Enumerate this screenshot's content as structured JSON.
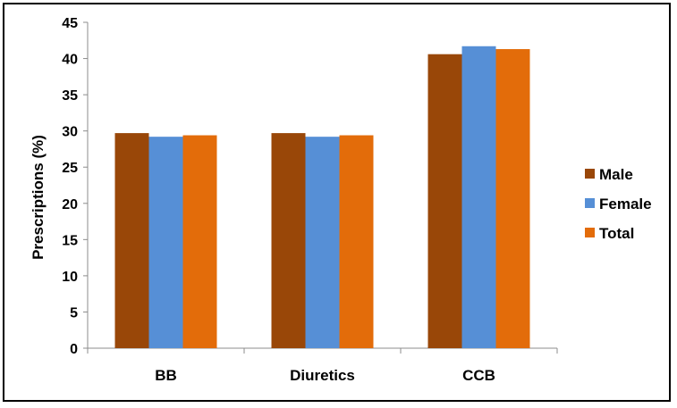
{
  "chart_data": {
    "type": "bar",
    "title": "",
    "xlabel": "",
    "ylabel": "Prescriptions (%)",
    "categories": [
      "BB",
      "Diuretics",
      "CCB"
    ],
    "ylim": [
      0,
      45
    ],
    "yticks": [
      0,
      5,
      10,
      15,
      20,
      25,
      30,
      35,
      40,
      45
    ],
    "grid": false,
    "legend_position": "right",
    "series": [
      {
        "name": "Male",
        "color": "#994708",
        "values": [
          29.7,
          29.7,
          40.6
        ]
      },
      {
        "name": "Female",
        "color": "#568fd6",
        "values": [
          29.2,
          29.2,
          41.7
        ]
      },
      {
        "name": "Total",
        "color": "#e36c0a",
        "values": [
          29.4,
          29.4,
          41.3
        ]
      }
    ]
  }
}
